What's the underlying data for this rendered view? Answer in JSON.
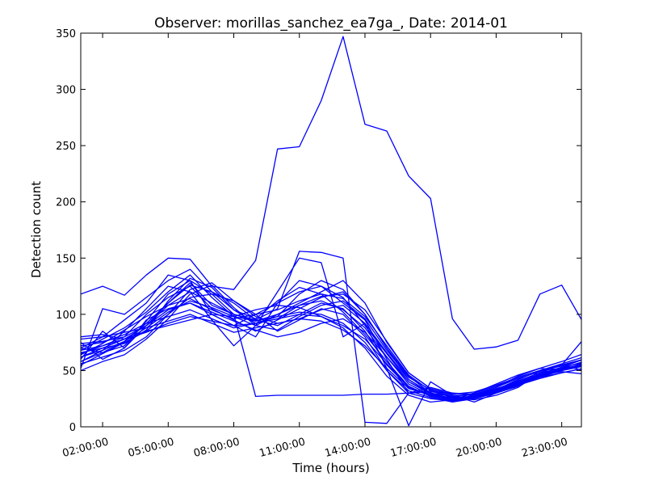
{
  "chart_data": {
    "type": "line",
    "title": "Observer: morillas_sanchez_ea7ga_, Date: 2014-01",
    "xlabel": "Time (hours)",
    "ylabel": "Detection count",
    "xlim": [
      1,
      23.9
    ],
    "ylim": [
      0,
      350
    ],
    "x_ticks": [
      2,
      5,
      8,
      11,
      14,
      17,
      20,
      23
    ],
    "x_tick_labels": [
      "02:00:00",
      "05:00:00",
      "08:00:00",
      "11:00:00",
      "14:00:00",
      "17:00:00",
      "20:00:00",
      "23:00:00"
    ],
    "y_ticks": [
      0,
      50,
      100,
      150,
      200,
      250,
      300,
      350
    ],
    "y_tick_labels": [
      "0",
      "50",
      "100",
      "150",
      "200",
      "250",
      "300",
      "350"
    ],
    "grid": false,
    "line_color": "#0000ff",
    "x": [
      1,
      2,
      3,
      4,
      5,
      6,
      7,
      8,
      9,
      10,
      11,
      12,
      13,
      14,
      15,
      16,
      17,
      18,
      19,
      20,
      21,
      22,
      23,
      24
    ],
    "series": [
      {
        "values": [
          118,
          125,
          117,
          135,
          150,
          149,
          125,
          122,
          148,
          247,
          249,
          290,
          347,
          269,
          263,
          223,
          203,
          96,
          69,
          71,
          77,
          118,
          126,
          92
        ]
      },
      {
        "values": [
          62,
          70,
          78,
          90,
          110,
          128,
          108,
          100,
          27,
          28,
          28,
          28,
          28,
          29,
          29,
          30,
          31,
          30,
          29,
          32,
          38,
          45,
          52,
          58
        ]
      },
      {
        "values": [
          52,
          105,
          100,
          115,
          130,
          140,
          120,
          110,
          95,
          105,
          156,
          155,
          150,
          4,
          3,
          30,
          32,
          26,
          24,
          28,
          35,
          48,
          55,
          60
        ]
      },
      {
        "values": [
          58,
          68,
          85,
          105,
          125,
          120,
          95,
          72,
          90,
          120,
          150,
          146,
          80,
          92,
          52,
          1,
          40,
          28,
          22,
          30,
          36,
          50,
          55,
          78
        ]
      },
      {
        "values": [
          70,
          80,
          95,
          110,
          135,
          130,
          100,
          90,
          100,
          110,
          120,
          125,
          110,
          95,
          60,
          30,
          35,
          30,
          28,
          35,
          45,
          52,
          58,
          65
        ]
      },
      {
        "values": [
          65,
          72,
          80,
          100,
          115,
          125,
          105,
          95,
          85,
          95,
          105,
          115,
          120,
          100,
          70,
          45,
          30,
          25,
          27,
          33,
          42,
          50,
          56,
          62
        ]
      },
      {
        "values": [
          75,
          60,
          70,
          90,
          108,
          120,
          110,
          100,
          95,
          90,
          100,
          110,
          105,
          85,
          55,
          35,
          28,
          24,
          30,
          38,
          46,
          52,
          50,
          55
        ]
      },
      {
        "values": [
          55,
          65,
          75,
          85,
          100,
          115,
          118,
          112,
          100,
          85,
          95,
          105,
          100,
          80,
          50,
          32,
          26,
          22,
          25,
          32,
          40,
          47,
          53,
          57
        ]
      },
      {
        "values": [
          68,
          78,
          88,
          102,
          120,
          135,
          115,
          98,
          90,
          100,
          110,
          120,
          130,
          110,
          75,
          48,
          34,
          29,
          31,
          37,
          44,
          50,
          54,
          60
        ]
      },
      {
        "values": [
          60,
          85,
          70,
          95,
          105,
          110,
          100,
          90,
          80,
          110,
          130,
          125,
          115,
          90,
          65,
          40,
          30,
          27,
          29,
          35,
          43,
          49,
          55,
          50
        ]
      },
      {
        "values": [
          72,
          75,
          82,
          92,
          98,
          104,
          96,
          88,
          92,
          98,
          102,
          100,
          92,
          75,
          50,
          30,
          25,
          23,
          26,
          31,
          38,
          44,
          48,
          52
        ]
      },
      {
        "values": [
          80,
          82,
          78,
          85,
          90,
          95,
          100,
          98,
          104,
          108,
          106,
          98,
          88,
          70,
          45,
          28,
          22,
          24,
          28,
          34,
          40,
          46,
          50,
          54
        ]
      },
      {
        "values": [
          66,
          70,
          74,
          86,
          112,
          132,
          124,
          104,
          96,
          112,
          124,
          118,
          102,
          82,
          58,
          36,
          27,
          23,
          25,
          30,
          38,
          45,
          51,
          56
        ]
      },
      {
        "values": [
          50,
          58,
          64,
          78,
          96,
          118,
          126,
          106,
          90,
          86,
          98,
          108,
          112,
          96,
          68,
          44,
          33,
          27,
          29,
          33,
          41,
          48,
          52,
          58
        ]
      },
      {
        "values": [
          78,
          80,
          84,
          88,
          94,
          100,
          92,
          84,
          88,
          92,
          96,
          94,
          86,
          72,
          52,
          34,
          28,
          26,
          30,
          36,
          44,
          50,
          52,
          55
        ]
      },
      {
        "values": [
          64,
          74,
          86,
          98,
          108,
          114,
          104,
          96,
          100,
          104,
          112,
          118,
          114,
          98,
          72,
          46,
          32,
          26,
          27,
          32,
          40,
          46,
          50,
          54
        ]
      },
      {
        "values": [
          70,
          66,
          72,
          94,
          118,
          130,
          118,
          100,
          94,
          98,
          118,
          130,
          122,
          100,
          70,
          42,
          30,
          25,
          26,
          30,
          37,
          44,
          50,
          57
        ]
      },
      {
        "values": [
          56,
          62,
          68,
          80,
          100,
          122,
          128,
          112,
          98,
          92,
          96,
          104,
          108,
          92,
          66,
          42,
          30,
          24,
          26,
          31,
          39,
          46,
          53,
          60
        ]
      },
      {
        "values": [
          74,
          76,
          80,
          90,
          104,
          110,
          102,
          94,
          86,
          80,
          84,
          92,
          96,
          84,
          62,
          40,
          29,
          24,
          27,
          33,
          40,
          46,
          49,
          47
        ]
      },
      {
        "values": [
          62,
          68,
          76,
          88,
          102,
          112,
          106,
          98,
          94,
          100,
          108,
          112,
          104,
          88,
          62,
          38,
          28,
          24,
          25,
          30,
          37,
          43,
          48,
          52
        ]
      },
      {
        "values": [
          68,
          72,
          78,
          84,
          92,
          98,
          94,
          90,
          92,
          96,
          100,
          98,
          90,
          78,
          56,
          36,
          27,
          23,
          26,
          32,
          39,
          45,
          50,
          54
        ]
      },
      {
        "values": [
          58,
          66,
          76,
          92,
          110,
          126,
          120,
          104,
          92,
          96,
          108,
          116,
          118,
          104,
          76,
          48,
          34,
          28,
          28,
          32,
          39,
          46,
          51,
          56
        ]
      }
    ]
  }
}
